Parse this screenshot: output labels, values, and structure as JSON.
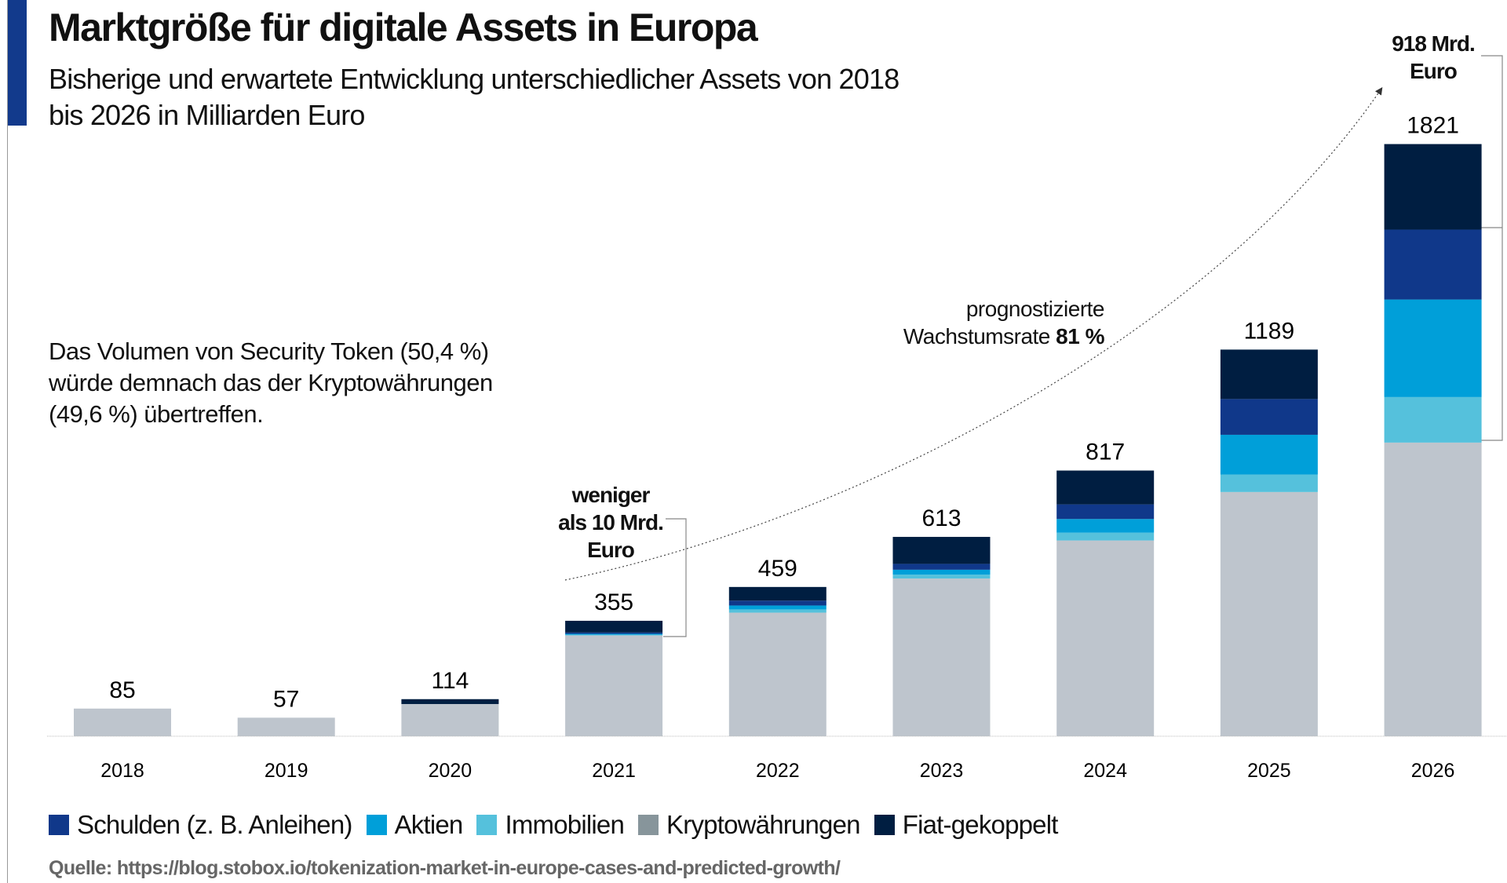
{
  "title": "Marktgröße für digitale Assets in Europa",
  "subtitle_line1": "Bisherige und erwartete Entwicklung unterschiedlicher Assets von 2018",
  "subtitle_line2": "bis 2026 in Milliarden Euro",
  "note": [
    "Das Volumen von Security Token (50,4 %)",
    "würde demnach das der Kryptowährungen",
    "(49,6 %) übertreffen."
  ],
  "growth": {
    "line1": "prognostizierte",
    "line2_prefix": "Wachstumsrate ",
    "rate": "81 %"
  },
  "annotation_2021": [
    "weniger",
    "als 10 Mrd.",
    "Euro"
  ],
  "annotation_2026": [
    "918 Mrd.",
    "Euro"
  ],
  "source": "Quelle: https://blog.stobox.io/tokenization-market-in-europe-cases-and-predicted-growth/",
  "chart_data": {
    "type": "bar",
    "stacked": true,
    "categories": [
      "2018",
      "2019",
      "2020",
      "2021",
      "2022",
      "2023",
      "2024",
      "2025",
      "2026"
    ],
    "totals": [
      85,
      57,
      114,
      355,
      459,
      613,
      817,
      1189,
      1821
    ],
    "series": [
      {
        "name": "Kryptowährungen",
        "color": "#bec5cd",
        "legend_color": "#87959b",
        "values": [
          85,
          57,
          99,
          310,
          380,
          485,
          602,
          751,
          903
        ]
      },
      {
        "name": "Immobilien",
        "color": "#55c1dc",
        "values": [
          0,
          0,
          0,
          2,
          10,
          12,
          24,
          54,
          140
        ]
      },
      {
        "name": "Aktien",
        "color": "#009fd9",
        "values": [
          0,
          0,
          0,
          3,
          12,
          15,
          42,
          122,
          300
        ]
      },
      {
        "name": "Schulden (z. B. Anleihen)",
        "color": "#10388a",
        "values": [
          0,
          0,
          0,
          4,
          15,
          18,
          45,
          110,
          215
        ]
      },
      {
        "name": "Fiat-gekoppelt",
        "color": "#001e41",
        "values": [
          0,
          0,
          15,
          36,
          42,
          83,
          104,
          152,
          263
        ]
      }
    ],
    "legend_order": [
      "Schulden (z. B. Anleihen)",
      "Aktien",
      "Immobilien",
      "Kryptowährungen",
      "Fiat-gekoppelt"
    ],
    "legend_placement": "bottom",
    "grid": false,
    "ylim": [
      0,
      1900
    ]
  }
}
